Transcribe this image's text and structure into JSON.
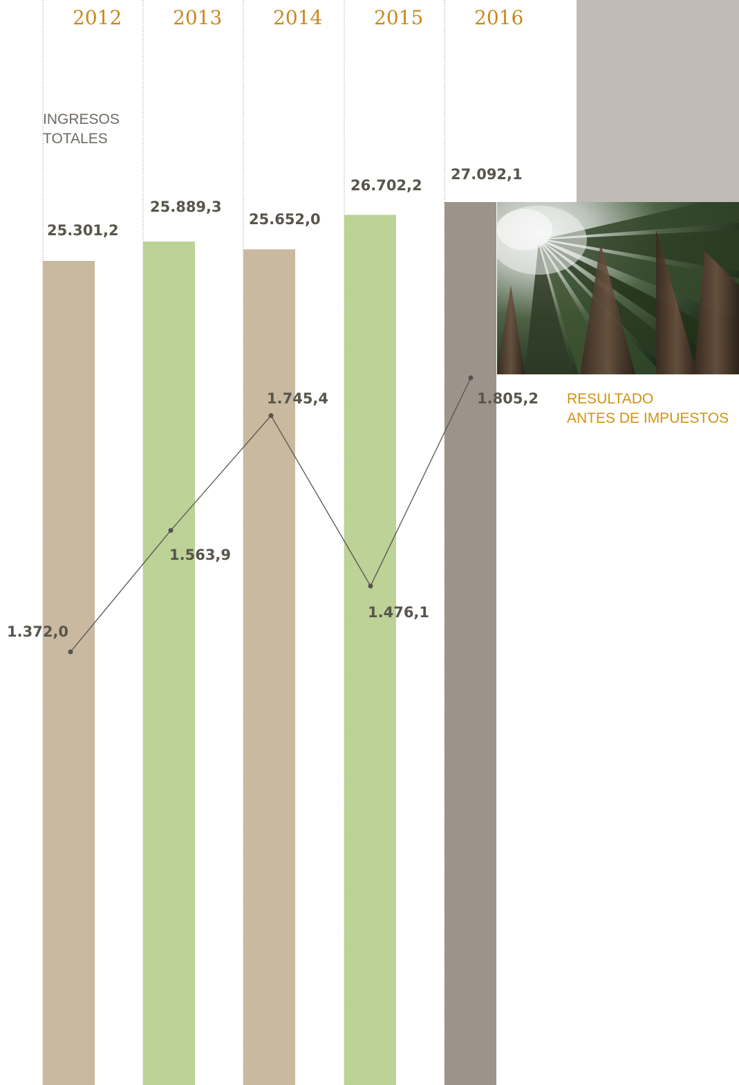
{
  "colors": {
    "bar_tan": "#c9b9a0",
    "bar_green": "#bcd296",
    "bar_dark": "#9c948b",
    "year_text": "#c8891d",
    "value_text": "#58554c",
    "label_text": "#6e6a63",
    "line": "#55534d",
    "accent_label": "#d4920f",
    "grey_block": "#c0bcb5"
  },
  "labels": {
    "bars_title_line1": "INGRESOS",
    "bars_title_line2": "TOTALES",
    "line_title_line1": "RESULTADO",
    "line_title_line2": "ANTES DE IMPUESTOS"
  },
  "photo": {
    "description_icon": "forest-canopy-image"
  },
  "chart_data": {
    "type": "bar",
    "categories": [
      "2012",
      "2013",
      "2014",
      "2015",
      "2016"
    ],
    "series": [
      {
        "name": "INGRESOS TOTALES",
        "type": "bar",
        "values": [
          25301.2,
          25889.3,
          25652.0,
          26702.2,
          27092.1
        ],
        "labels": [
          "25.301,2",
          "25.889,3",
          "25.652,0",
          "26.702,2",
          "27.092,1"
        ]
      },
      {
        "name": "RESULTADO ANTES DE IMPUESTOS",
        "type": "line",
        "values": [
          1372.0,
          1563.9,
          1745.4,
          1476.1,
          1805.2
        ],
        "labels": [
          "1.372,0",
          "1.563,9",
          "1.745,4",
          "1.476,1",
          "1.805,2"
        ]
      }
    ],
    "grid": true,
    "legend": "inline"
  }
}
